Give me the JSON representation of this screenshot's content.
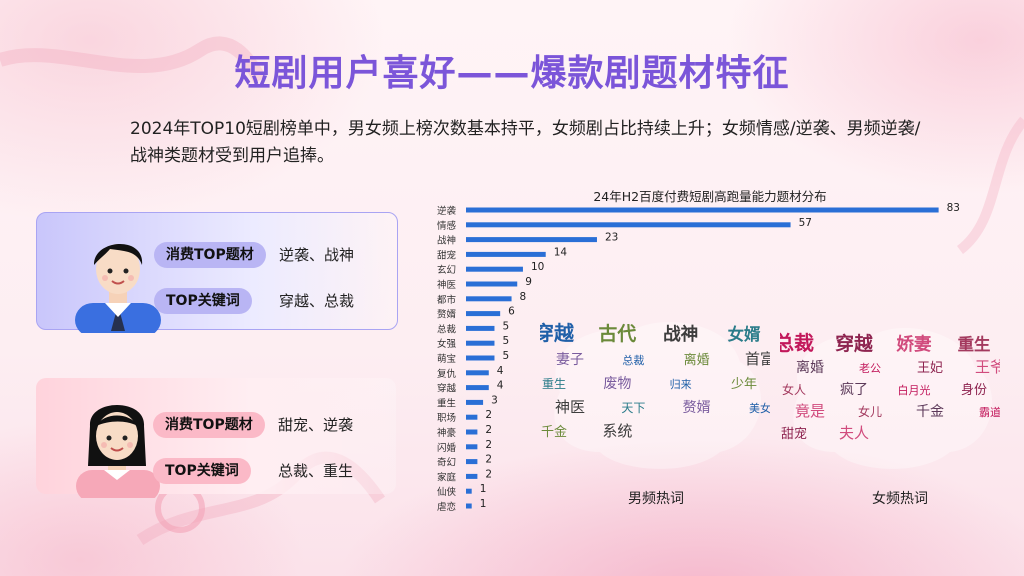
{
  "title": "短剧用户喜好——爆款剧题材特征",
  "subtitle": "2024年TOP10短剧榜单中，男女频上榜次数基本持平，女频剧占比持续上升；女频情感/逆袭、男频逆袭/战神类题材受到用户追捧。",
  "male": {
    "topic_tag": "消费TOP题材",
    "topic_value": "逆袭、战神",
    "keyword_tag": "TOP关键词",
    "keyword_value": "穿越、总裁"
  },
  "female": {
    "topic_tag": "消费TOP题材",
    "topic_value": "甜宠、逆袭",
    "keyword_tag": "TOP关键词",
    "keyword_value": "总裁、重生"
  },
  "colors": {
    "bar": "#2a6fd6",
    "title": "#7b55d9"
  },
  "chart_data": {
    "type": "bar",
    "orientation": "horizontal",
    "title": "24年H2百度付费短剧高跑量能力题材分布",
    "categories": [
      "逆袭",
      "情感",
      "战神",
      "甜宠",
      "玄幻",
      "神医",
      "都市",
      "赘婿",
      "总裁",
      "女强",
      "萌宝",
      "复仇",
      "穿越",
      "重生",
      "职场",
      "神豪",
      "闪婚",
      "奇幻",
      "家庭",
      "仙侠",
      "虐恋"
    ],
    "values": [
      83,
      57,
      23,
      14,
      10,
      9,
      8,
      6,
      5,
      5,
      5,
      4,
      4,
      3,
      2,
      2,
      2,
      2,
      2,
      1,
      1
    ],
    "xlim": [
      0,
      85
    ],
    "grid": false,
    "legend": "none"
  },
  "wordclouds": {
    "male": {
      "label": "男频热词",
      "words": [
        "穿越",
        "古代",
        "战神",
        "女婿",
        "妻子",
        "总裁",
        "离婚",
        "首富",
        "重生",
        "废物",
        "归来",
        "少年",
        "神医",
        "天下",
        "赘婿",
        "美女",
        "千金",
        "系统"
      ]
    },
    "female": {
      "label": "女频热词",
      "words": [
        "总裁",
        "穿越",
        "娇妻",
        "重生",
        "离婚",
        "老公",
        "王妃",
        "王爷",
        "女人",
        "疯了",
        "白月光",
        "身份",
        "竟是",
        "女儿",
        "千金",
        "霸道",
        "甜宠",
        "夫人"
      ]
    }
  }
}
